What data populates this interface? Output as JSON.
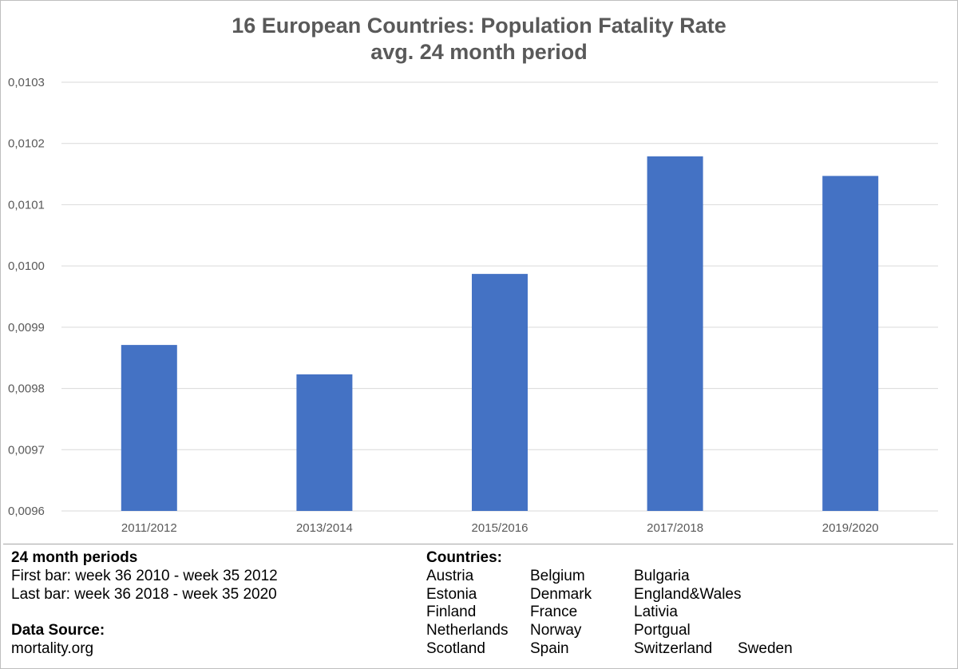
{
  "chart_data": {
    "type": "bar",
    "title": "16 European Countries: Population Fatality Rate",
    "subtitle": "avg. 24 month period",
    "xlabel": "",
    "ylabel": "",
    "categories": [
      "2011/2012",
      "2013/2014",
      "2015/2016",
      "2017/2018",
      "2019/2020"
    ],
    "values": [
      0.009871,
      0.009823,
      0.009987,
      0.010179,
      0.010147
    ],
    "ylim": [
      0.0096,
      0.0103
    ],
    "yticks": [
      "0,0096",
      "0,0097",
      "0,0098",
      "0,0099",
      "0,0100",
      "0,0101",
      "0,0102",
      "0,0103"
    ],
    "ytick_values": [
      0.0096,
      0.0097,
      0.0098,
      0.0099,
      0.01,
      0.0101,
      0.0102,
      0.0103
    ],
    "grid": true,
    "bar_color": "#4472c4"
  },
  "info": {
    "periods_heading": "24 month periods",
    "first_bar": "First bar: week 36 2010  - week 35 2012",
    "last_bar": "Last bar: week 36 2018  - week 35 2020",
    "source_heading": "Data Source:",
    "source": "mortality.org",
    "countries_heading": "Countries:",
    "countries": [
      [
        "Austria",
        "Belgium",
        "Bulgaria"
      ],
      [
        "Estonia",
        "Denmark",
        "England&Wales"
      ],
      [
        "Finland",
        "France",
        "Lativia"
      ],
      [
        "Netherlands",
        "Norway",
        "Portgual"
      ],
      [
        "Scotland",
        "Spain",
        "Switzerland",
        "Sweden"
      ]
    ]
  }
}
